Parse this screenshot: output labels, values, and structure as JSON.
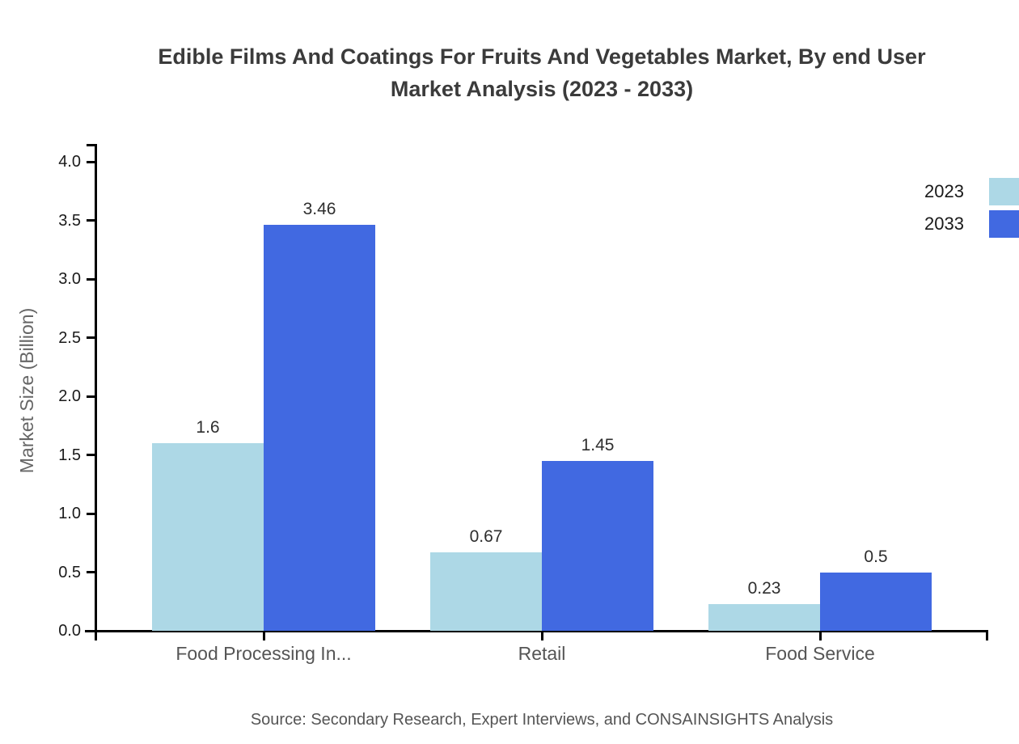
{
  "title": {
    "line1": "Edible Films And Coatings For Fruits And Vegetables Market, By end User",
    "line2": "Market Analysis (2023 - 2033)"
  },
  "source": "Source: Secondary Research, Expert Interviews, and CONSAINSIGHTS Analysis",
  "chart_data": {
    "type": "bar",
    "title": "Edible Films And Coatings For Fruits And Vegetables Market, By end User Market Analysis (2023 - 2033)",
    "categories": [
      "Food Processing In...",
      "Retail",
      "Food Service"
    ],
    "series": [
      {
        "name": "2023",
        "color": "#ADD8E6",
        "values": [
          1.6,
          0.67,
          0.23
        ],
        "labels": [
          "1.6",
          "0.67",
          "0.23"
        ]
      },
      {
        "name": "2033",
        "color": "#4169E1",
        "values": [
          3.46,
          1.45,
          0.5
        ],
        "labels": [
          "3.46",
          "1.45",
          "0.5"
        ]
      }
    ],
    "xlabel": "",
    "ylabel": "Market Size (Billion)",
    "ylim": [
      0,
      4.0
    ],
    "yticks": [
      0.0,
      0.5,
      1.0,
      1.5,
      2.0,
      2.5,
      3.0,
      3.5,
      4.0
    ],
    "ytick_labels": [
      "0.0",
      "0.5",
      "1.0",
      "1.5",
      "2.0",
      "2.5",
      "3.0",
      "3.5",
      "4.0"
    ],
    "grid": false,
    "legend_position": "top-right",
    "axis_color": "#000000"
  }
}
